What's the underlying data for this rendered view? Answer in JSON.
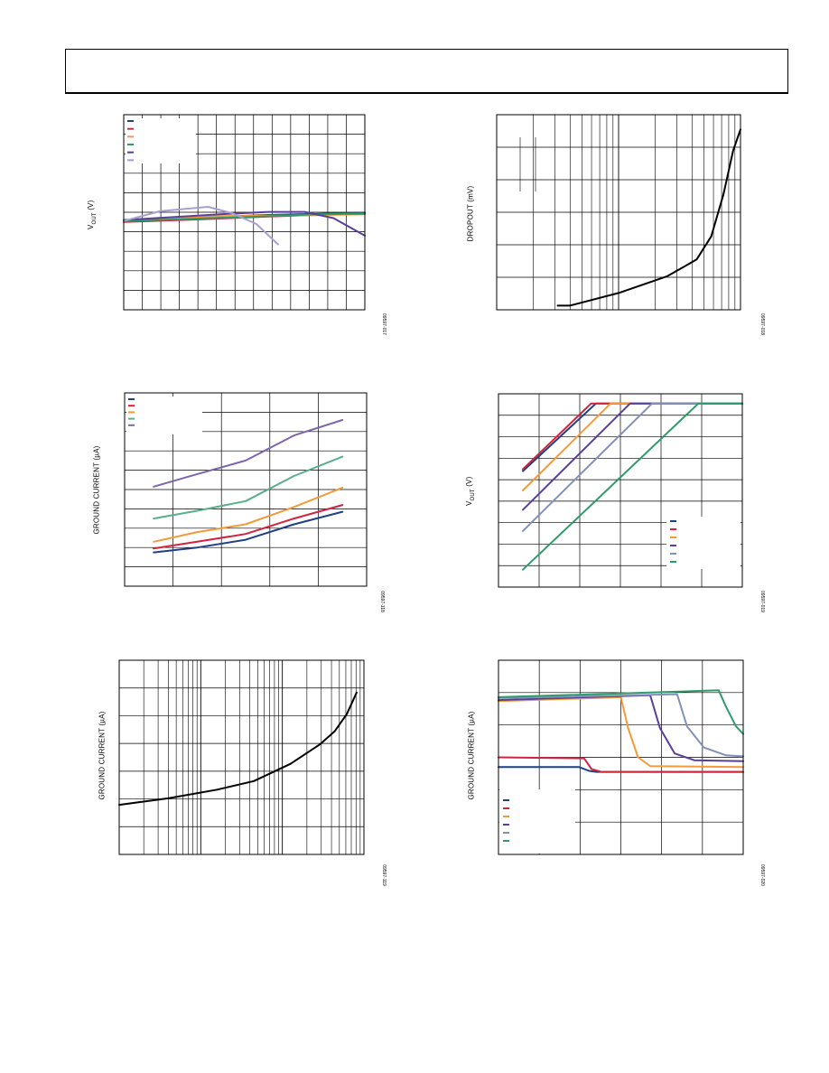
{
  "charts": [
    {
      "id": "p1",
      "ylabel": "V",
      "ylabel_sub": "OUT",
      "ylabel_unit": " (V)",
      "fig_id": "09597-017",
      "chart_data": {
        "type": "line",
        "xscale": "linear",
        "legend": "top-left",
        "series": [
          {
            "color": "#1f3f87",
            "points": [
              [
                0,
                4.55
              ],
              [
                0.2,
                4.68
              ],
              [
                0.4,
                4.78
              ],
              [
                0.6,
                4.86
              ],
              [
                0.8,
                4.92
              ],
              [
                1,
                4.98
              ]
            ]
          },
          {
            "color": "#d2233f",
            "points": [
              [
                0,
                4.5
              ],
              [
                0.3,
                4.63
              ],
              [
                0.6,
                4.78
              ],
              [
                1,
                4.95
              ]
            ]
          },
          {
            "color": "#f59a3a",
            "points": [
              [
                0,
                4.6
              ],
              [
                0.4,
                4.8
              ],
              [
                0.8,
                4.85
              ],
              [
                1,
                4.9
              ]
            ]
          },
          {
            "color": "#2e9c6a",
            "points": [
              [
                0,
                4.55
              ],
              [
                0.5,
                4.75
              ],
              [
                0.8,
                4.9
              ],
              [
                1,
                4.92
              ]
            ]
          },
          {
            "color": "#5a3f99",
            "points": [
              [
                0,
                4.6
              ],
              [
                0.4,
                4.9
              ],
              [
                0.6,
                5.02
              ],
              [
                0.75,
                5.02
              ],
              [
                0.87,
                4.7
              ],
              [
                1,
                3.8
              ]
            ]
          },
          {
            "color": "#a79fd0",
            "points": [
              [
                0,
                4.55
              ],
              [
                0.15,
                5.05
              ],
              [
                0.35,
                5.28
              ],
              [
                0.45,
                4.95
              ],
              [
                0.55,
                4.4
              ],
              [
                0.64,
                3.35
              ]
            ]
          }
        ],
        "ylim": [
          0,
          10
        ],
        "legend_entries": 6
      }
    },
    {
      "id": "p2",
      "ylabel": "DROPOUT (mV)",
      "fig_id": "09597-018",
      "chart_data": {
        "type": "line",
        "xscale": "log",
        "series": [
          {
            "color": "#000000",
            "points": [
              [
                0.25,
                0.2
              ],
              [
                0.3,
                0.2
              ],
              [
                0.5,
                0.8
              ],
              [
                0.7,
                1.6
              ],
              [
                0.82,
                2.4
              ],
              [
                0.88,
                3.5
              ],
              [
                0.93,
                5.5
              ],
              [
                0.97,
                7.6
              ],
              [
                1,
                8.6
              ]
            ]
          }
        ],
        "ylim": [
          0,
          9.3
        ]
      }
    },
    {
      "id": "p3",
      "ylabel": "GROUND CURRENT (µA)",
      "fig_id": "09597-118",
      "chart_data": {
        "type": "line",
        "xscale": "linear",
        "legend": "top-left",
        "series": [
          {
            "color": "#1f3f87",
            "points": [
              [
                0.12,
                1.75
              ],
              [
                0.3,
                2.0
              ],
              [
                0.5,
                2.4
              ],
              [
                0.7,
                3.2
              ],
              [
                0.9,
                3.85
              ]
            ]
          },
          {
            "color": "#d2233f",
            "points": [
              [
                0.12,
                1.95
              ],
              [
                0.3,
                2.3
              ],
              [
                0.5,
                2.7
              ],
              [
                0.7,
                3.5
              ],
              [
                0.9,
                4.2
              ]
            ]
          },
          {
            "color": "#f59a3a",
            "points": [
              [
                0.12,
                2.3
              ],
              [
                0.3,
                2.8
              ],
              [
                0.5,
                3.2
              ],
              [
                0.7,
                4.1
              ],
              [
                0.9,
                5.1
              ]
            ]
          },
          {
            "color": "#5aae8a",
            "points": [
              [
                0.12,
                3.5
              ],
              [
                0.3,
                3.9
              ],
              [
                0.5,
                4.4
              ],
              [
                0.7,
                5.7
              ],
              [
                0.9,
                6.7
              ]
            ]
          },
          {
            "color": "#7d66ad",
            "points": [
              [
                0.12,
                5.15
              ],
              [
                0.3,
                5.8
              ],
              [
                0.5,
                6.5
              ],
              [
                0.7,
                7.8
              ],
              [
                0.9,
                8.6
              ]
            ]
          }
        ],
        "ylim": [
          0,
          10
        ],
        "legend_entries": 5
      }
    },
    {
      "id": "p4",
      "ylabel": "V",
      "ylabel_sub": "OUT",
      "ylabel_unit": " (V)",
      "fig_id": "09597-019",
      "chart_data": {
        "type": "line",
        "xscale": "linear",
        "legend": "bottom-right",
        "series": [
          {
            "color": "#1f3f87",
            "points": [
              [
                0.1,
                6.0
              ],
              [
                0.4,
                9.5
              ],
              [
                1,
                9.5
              ]
            ]
          },
          {
            "color": "#d2233f",
            "points": [
              [
                0.1,
                6.1
              ],
              [
                0.38,
                9.5
              ],
              [
                1,
                9.5
              ]
            ]
          },
          {
            "color": "#f59a3a",
            "points": [
              [
                0.1,
                5.0
              ],
              [
                0.46,
                9.5
              ],
              [
                1,
                9.5
              ]
            ]
          },
          {
            "color": "#5a3f99",
            "points": [
              [
                0.1,
                4.0
              ],
              [
                0.54,
                9.5
              ],
              [
                1,
                9.5
              ]
            ]
          },
          {
            "color": "#8391b8",
            "points": [
              [
                0.1,
                2.9
              ],
              [
                0.63,
                9.5
              ],
              [
                1,
                9.5
              ]
            ]
          },
          {
            "color": "#2e9c6a",
            "points": [
              [
                0.1,
                0.9
              ],
              [
                0.82,
                9.5
              ],
              [
                1,
                9.5
              ]
            ]
          }
        ],
        "ylim": [
          0,
          10
        ],
        "legend_entries": 6
      }
    },
    {
      "id": "p5",
      "ylabel": "GROUND CURRENT (µA)",
      "fig_id": "09597-119",
      "chart_data": {
        "type": "line",
        "xscale": "log",
        "series": [
          {
            "color": "#000000",
            "points": [
              [
                0,
                2.3
              ],
              [
                0.2,
                2.6
              ],
              [
                0.4,
                3.0
              ],
              [
                0.55,
                3.4
              ],
              [
                0.7,
                4.2
              ],
              [
                0.82,
                5.1
              ],
              [
                0.88,
                5.7
              ],
              [
                0.93,
                6.5
              ],
              [
                0.97,
                7.5
              ]
            ]
          }
        ],
        "ylim": [
          0,
          9
        ]
      }
    },
    {
      "id": "p6",
      "ylabel": "GROUND CURRENT (µA)",
      "fig_id": "09597-020",
      "chart_data": {
        "type": "line",
        "xscale": "linear",
        "legend": "bottom-left",
        "series": [
          {
            "color": "#1f3f87",
            "points": [
              [
                0,
                4.5
              ],
              [
                0.33,
                4.5
              ],
              [
                0.37,
                4.3
              ],
              [
                0.4,
                4.25
              ],
              [
                1,
                4.25
              ]
            ]
          },
          {
            "color": "#d2233f",
            "points": [
              [
                0,
                5.0
              ],
              [
                0.35,
                4.95
              ],
              [
                0.38,
                4.4
              ],
              [
                0.42,
                4.25
              ],
              [
                1,
                4.25
              ]
            ]
          },
          {
            "color": "#f59a3a",
            "points": [
              [
                0,
                7.9
              ],
              [
                0.5,
                8.1
              ],
              [
                0.53,
                6.5
              ],
              [
                0.57,
                5.0
              ],
              [
                0.62,
                4.55
              ],
              [
                1,
                4.5
              ]
            ]
          },
          {
            "color": "#5a3f99",
            "points": [
              [
                0,
                7.95
              ],
              [
                0.62,
                8.2
              ],
              [
                0.66,
                6.5
              ],
              [
                0.72,
                5.2
              ],
              [
                0.8,
                4.85
              ],
              [
                1,
                4.8
              ]
            ]
          },
          {
            "color": "#8391b8",
            "points": [
              [
                0,
                8.05
              ],
              [
                0.73,
                8.25
              ],
              [
                0.77,
                6.6
              ],
              [
                0.84,
                5.5
              ],
              [
                0.93,
                5.1
              ],
              [
                1,
                5.05
              ]
            ]
          },
          {
            "color": "#2e9c6a",
            "points": [
              [
                0,
                8.1
              ],
              [
                0.9,
                8.45
              ],
              [
                0.93,
                7.6
              ],
              [
                0.97,
                6.6
              ],
              [
                1,
                6.2
              ]
            ]
          }
        ],
        "ylim": [
          0,
          10
        ],
        "legend_entries": 6
      }
    }
  ]
}
